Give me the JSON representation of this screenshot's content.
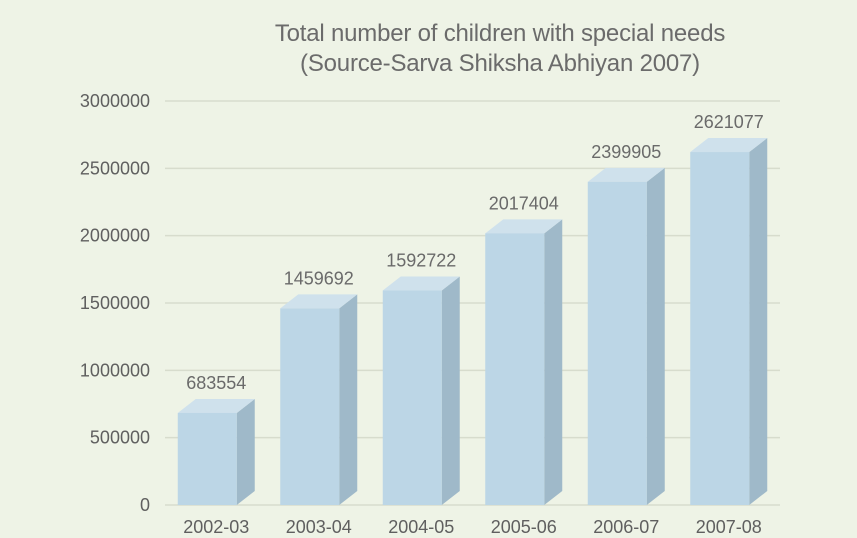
{
  "chart_data": {
    "type": "bar",
    "title": "Total number of children with special needs",
    "subtitle": "(Source-Sarva Shiksha Abhiyan 2007)",
    "xlabel": "",
    "ylabel": "",
    "categories": [
      "2002-03",
      "2003-04",
      "2004-05",
      "2005-06",
      "2006-07",
      "2007-08"
    ],
    "values": [
      683554,
      1459692,
      1592722,
      2017404,
      2399905,
      2621077
    ],
    "data_labels": [
      "683554",
      "1459692",
      "1592722",
      "2017404",
      "2399905",
      "2621077"
    ],
    "ylim": [
      0,
      3000000
    ],
    "yticks": [
      0,
      500000,
      1000000,
      1500000,
      2000000,
      2500000,
      3000000
    ],
    "ytick_labels": [
      "0",
      "500000",
      "1000000",
      "1500000",
      "2000000",
      "2500000",
      "3000000"
    ],
    "grid": true,
    "style": "3d-column",
    "colors": {
      "background": "#eef3e6",
      "bar_front": "#bcd6e6",
      "bar_top": "#cfe1ec",
      "bar_side": "#9fb9c9",
      "grid": "#d7dccd",
      "text": "#5f5f5f"
    }
  }
}
